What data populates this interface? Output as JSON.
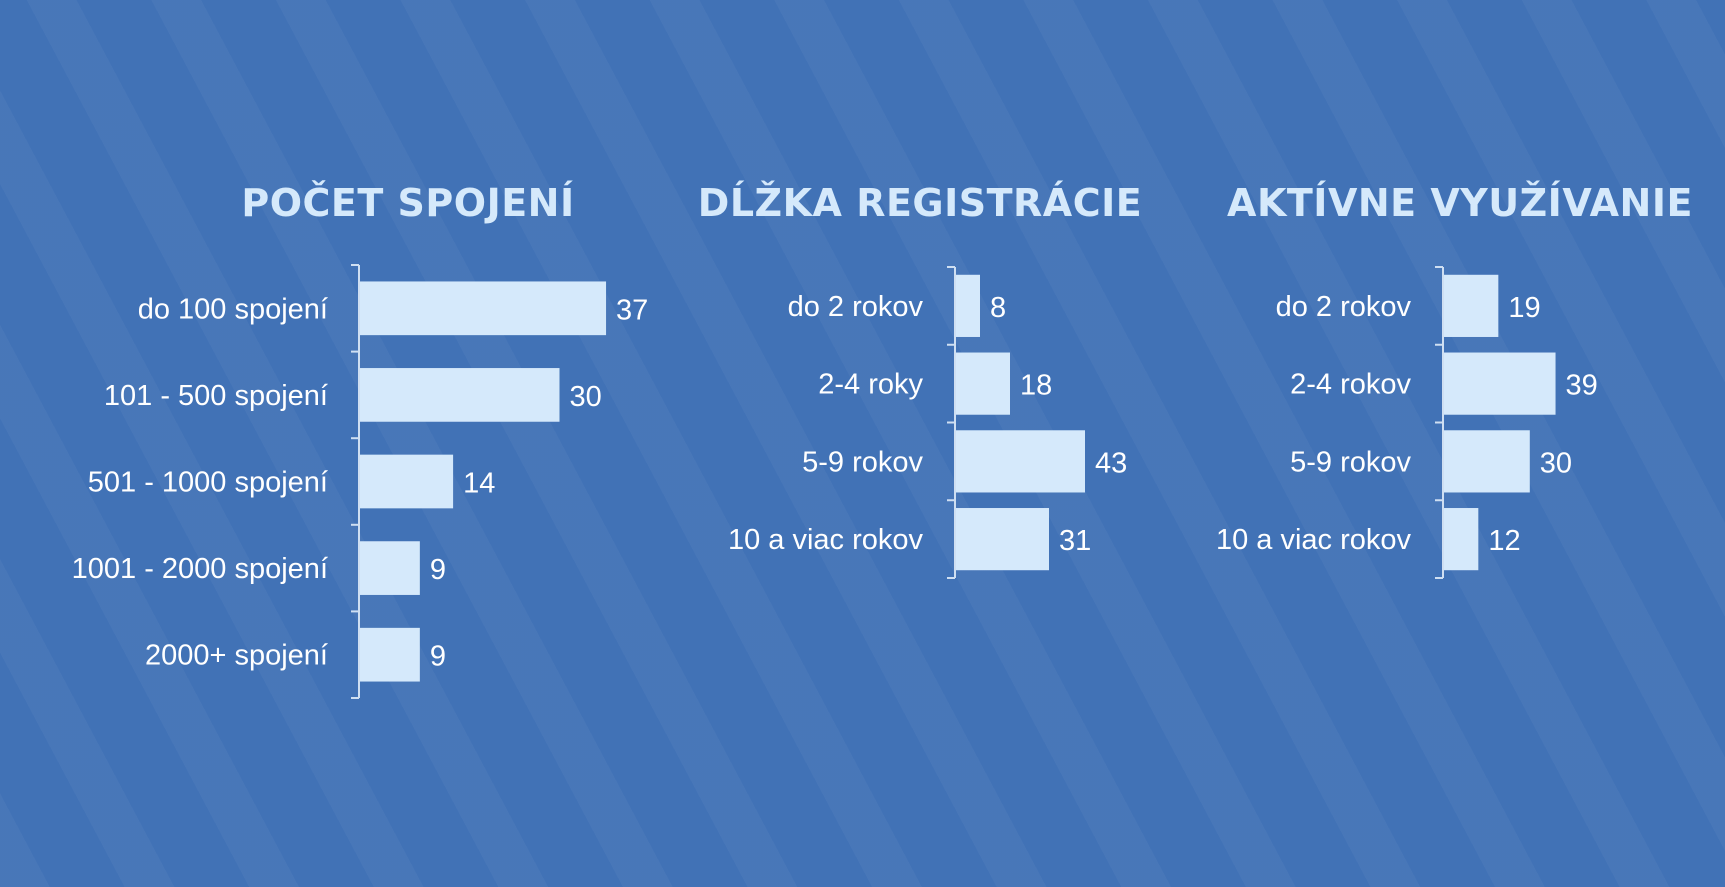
{
  "colors": {
    "background": "#4172b6",
    "bar": "#d5e9fb",
    "text": "#ffffff",
    "title": "#d5e9fb",
    "axis": "#cfdff2"
  },
  "chart_data": [
    {
      "type": "bar",
      "orientation": "horizontal",
      "title": "POČET SPOJENÍ",
      "categories": [
        "do 100 spojení",
        "101 - 500 spojení",
        "501 - 1000 spojení",
        "1001 - 2000 spojení",
        "2000+ spojení"
      ],
      "values": [
        37,
        30,
        14,
        9,
        9
      ],
      "data_labels": true,
      "grid": false
    },
    {
      "type": "bar",
      "orientation": "horizontal",
      "title": "DĹŽKA REGISTRÁCIE",
      "categories": [
        "do 2 rokov",
        "2-4 roky",
        "5-9 rokov",
        "10 a viac rokov"
      ],
      "values": [
        8,
        18,
        43,
        31
      ],
      "data_labels": true,
      "grid": false
    },
    {
      "type": "bar",
      "orientation": "horizontal",
      "title": "AKTÍVNE VYUŽÍVANIE",
      "categories": [
        "do 2 rokov",
        "2-4 rokov",
        "5-9 rokov",
        "10 a viac rokov"
      ],
      "values": [
        19,
        39,
        30,
        12
      ],
      "data_labels": true,
      "grid": false
    }
  ]
}
